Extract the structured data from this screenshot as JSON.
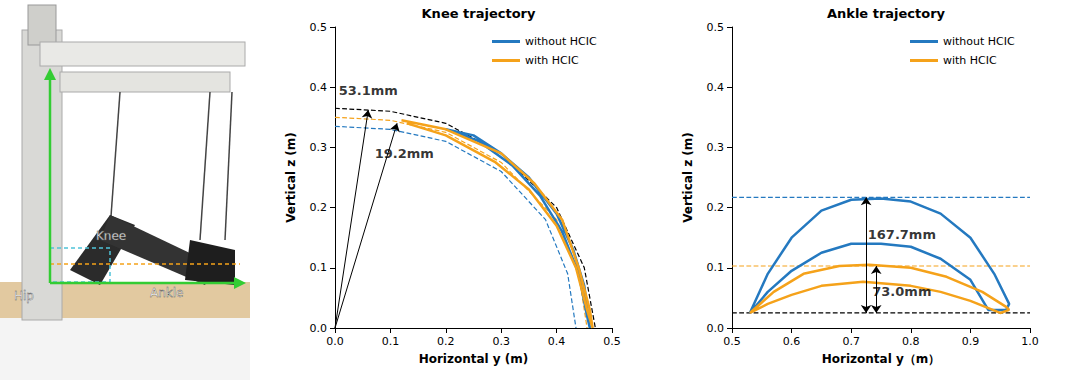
{
  "image_panel": {
    "labels": [
      "Knee",
      "Hip",
      "Ankle"
    ]
  },
  "chart_data": [
    {
      "type": "line",
      "title": "Knee trajectory",
      "xlabel": "Horizontal y (m)",
      "ylabel": "Vertical z (m)",
      "xlim": [
        0,
        0.5
      ],
      "ylim": [
        0,
        0.5
      ],
      "xticks": [
        {
          "value": 0,
          "label": "0.0"
        },
        0.1,
        0.2,
        0.3,
        0.4,
        0.5
      ],
      "yticks": [
        {
          "value": 0,
          "label": "0.0"
        },
        0.1,
        0.2,
        0.3,
        0.4,
        0.5
      ],
      "grid": false,
      "legend": "upper right",
      "series": [
        {
          "name": "without HCIC",
          "color": "#2479c0",
          "x": [
            0.2,
            0.25,
            0.3,
            0.35,
            0.4,
            0.43,
            0.45,
            0.46,
            0.455,
            0.44,
            0.41,
            0.37,
            0.32,
            0.26,
            0.22,
            0.2
          ],
          "values": [
            0.33,
            0.32,
            0.29,
            0.25,
            0.19,
            0.13,
            0.07,
            0.0,
            0.02,
            0.09,
            0.16,
            0.22,
            0.27,
            0.31,
            0.325,
            0.33
          ]
        },
        {
          "name": "with HCIC",
          "color": "#f5a21a",
          "x": [
            0.12,
            0.2,
            0.3,
            0.36,
            0.41,
            0.44,
            0.46,
            0.465,
            0.455,
            0.435,
            0.4,
            0.35,
            0.29,
            0.2,
            0.13
          ],
          "values": [
            0.345,
            0.33,
            0.29,
            0.24,
            0.18,
            0.1,
            0.03,
            0.0,
            0.03,
            0.1,
            0.17,
            0.23,
            0.275,
            0.32,
            0.34
          ]
        }
      ],
      "reference_lines": [
        {
          "color": "#000000",
          "line_style": "dashed",
          "x": [
            0,
            0.1,
            0.2,
            0.3,
            0.4,
            0.45,
            0.47
          ],
          "values": [
            0.365,
            0.36,
            0.34,
            0.29,
            0.2,
            0.1,
            0.0
          ]
        },
        {
          "color": "#f5a21a",
          "line_style": "dashed",
          "x": [
            0,
            0.1,
            0.2,
            0.3,
            0.4,
            0.44,
            0.455
          ],
          "values": [
            0.35,
            0.345,
            0.325,
            0.275,
            0.18,
            0.09,
            0.0
          ]
        },
        {
          "color": "#2479c0",
          "line_style": "dashed",
          "x": [
            0,
            0.1,
            0.2,
            0.3,
            0.38,
            0.42,
            0.435
          ],
          "values": [
            0.335,
            0.33,
            0.31,
            0.26,
            0.18,
            0.09,
            0.0
          ]
        }
      ],
      "annotations": [
        {
          "text": "53.1mm",
          "x": 0.06,
          "y": 0.395,
          "marker": "arrow",
          "arrow_from": [
            0,
            0
          ],
          "arrow_to": [
            0.06,
            0.362
          ]
        },
        {
          "text": "19.2mm",
          "x": 0.125,
          "y": 0.29,
          "marker": "arrow",
          "arrow_from": [
            0,
            0
          ],
          "arrow_to": [
            0.112,
            0.34
          ]
        }
      ]
    },
    {
      "type": "line",
      "title": "Ankle trajectory",
      "xlabel": "Horizontal y（m）",
      "ylabel": "Vertical z (m)",
      "xlim": [
        0.5,
        1.0
      ],
      "ylim": [
        0,
        0.5
      ],
      "xticks": [
        0.5,
        0.6,
        0.7,
        0.8,
        0.9,
        {
          "value": 1,
          "label": "1.0"
        }
      ],
      "yticks": [
        {
          "value": 0,
          "label": "0.0"
        },
        0.1,
        0.2,
        0.3,
        0.4,
        0.5
      ],
      "grid": false,
      "legend": "upper right",
      "series": [
        {
          "name": "without HCIC",
          "color": "#2479c0",
          "x": [
            0.53,
            0.56,
            0.6,
            0.65,
            0.7,
            0.75,
            0.8,
            0.85,
            0.9,
            0.94,
            0.965,
            0.96,
            0.93,
            0.9,
            0.85,
            0.8,
            0.75,
            0.7,
            0.65,
            0.6,
            0.56,
            0.53
          ],
          "values": [
            0.025,
            0.09,
            0.15,
            0.195,
            0.213,
            0.215,
            0.21,
            0.19,
            0.15,
            0.09,
            0.04,
            0.03,
            0.03,
            0.08,
            0.115,
            0.135,
            0.14,
            0.14,
            0.125,
            0.095,
            0.06,
            0.025
          ]
        },
        {
          "name": "with HCIC",
          "color": "#f5a21a",
          "x": [
            0.53,
            0.57,
            0.62,
            0.68,
            0.73,
            0.8,
            0.86,
            0.92,
            0.96,
            0.965,
            0.95,
            0.9,
            0.85,
            0.8,
            0.72,
            0.65,
            0.6,
            0.56,
            0.53
          ],
          "values": [
            0.025,
            0.06,
            0.09,
            0.103,
            0.105,
            0.1,
            0.085,
            0.06,
            0.035,
            0.03,
            0.025,
            0.045,
            0.06,
            0.07,
            0.077,
            0.07,
            0.055,
            0.04,
            0.025
          ]
        }
      ],
      "reference_lines": [
        {
          "color": "#2479c0",
          "line_style": "dashed",
          "x": [
            0.5,
            1.0
          ],
          "values": [
            0.217,
            0.217
          ]
        },
        {
          "color": "#f5a21a",
          "line_style": "dashed",
          "x": [
            0.5,
            1.0
          ],
          "values": [
            0.103,
            0.103
          ]
        },
        {
          "color": "#000000",
          "line_style": "dashed",
          "x": [
            0.5,
            1.0
          ],
          "values": [
            0.025,
            0.025
          ]
        }
      ],
      "annotations": [
        {
          "text": "167.7mm",
          "x": 0.785,
          "y": 0.155,
          "marker": "double_arrow",
          "arrow_from": [
            0.725,
            0.025
          ],
          "arrow_to": [
            0.725,
            0.217
          ]
        },
        {
          "text": "73.0mm",
          "x": 0.785,
          "y": 0.06,
          "marker": "double_arrow",
          "arrow_from": [
            0.742,
            0.025
          ],
          "arrow_to": [
            0.742,
            0.103
          ]
        }
      ]
    }
  ]
}
